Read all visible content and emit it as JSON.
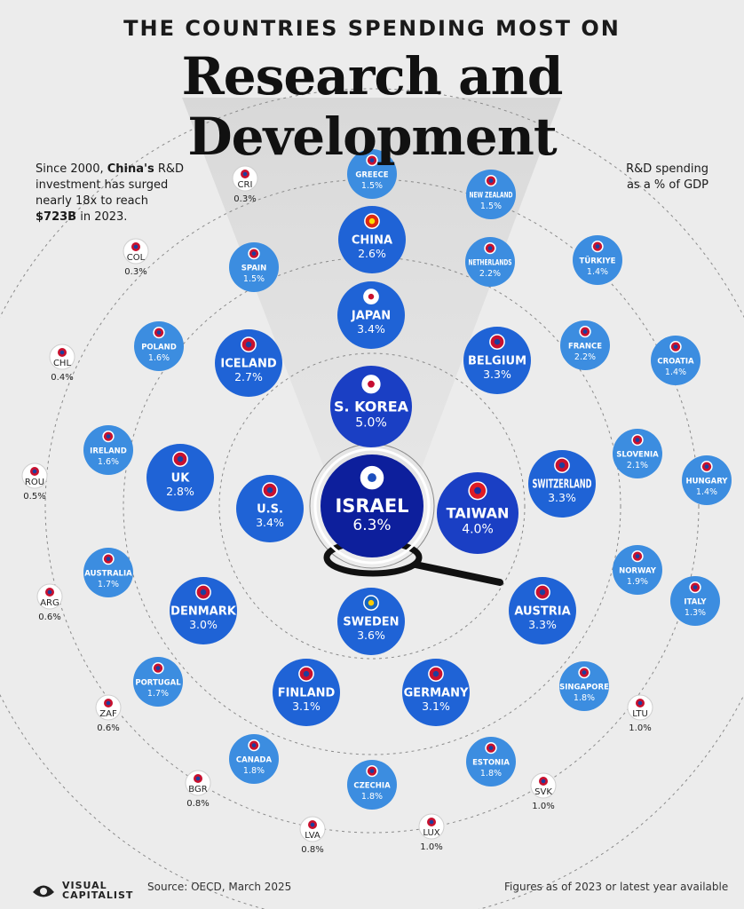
{
  "header": {
    "supertitle": "THE COUNTRIES SPENDING MOST ON",
    "title": "Research and Development"
  },
  "annotation": {
    "line1": "Since 2000, ",
    "bold1": "China's",
    "line1b": " R&D",
    "line2": "investment has surged",
    "line3": "nearly 18x to reach",
    "bold2": "$723B",
    "line4": " in 2023."
  },
  "unit_note": {
    "line1": "R&D spending",
    "line2": "as a % of GDP"
  },
  "footer": {
    "brand": "VISUAL CAPITALIST",
    "source": "Source: OECD, March 2025",
    "note": "Figures as of 2023 or latest year available"
  },
  "colors": {
    "background": "#ececec",
    "ring1": "#0d1f9c",
    "ring2": "#1a3fc4",
    "ring3": "#1f63d6",
    "ring4": "#3c8de0",
    "ring5": "#ffffff",
    "text_light": "#ffffff",
    "text_dark": "#222222"
  },
  "chart_data": {
    "type": "bubble",
    "measure": "R&D spending as a % of GDP",
    "countries": [
      {
        "name": "ISRAEL",
        "value": 6.3,
        "flag": "israel-flag"
      },
      {
        "name": "S. KOREA",
        "value": 5.0,
        "flag": "south-korea-flag"
      },
      {
        "name": "TAIWAN",
        "value": 4.0,
        "flag": "taiwan-flag"
      },
      {
        "name": "SWEDEN",
        "value": 3.6,
        "flag": "sweden-flag"
      },
      {
        "name": "U.S.",
        "value": 3.4,
        "flag": "usa-flag"
      },
      {
        "name": "JAPAN",
        "value": 3.4,
        "flag": "japan-flag"
      },
      {
        "name": "BELGIUM",
        "value": 3.3,
        "flag": "belgium-flag"
      },
      {
        "name": "SWITZERLAND",
        "value": 3.3,
        "flag": "switzerland-flag"
      },
      {
        "name": "AUSTRIA",
        "value": 3.3,
        "flag": "austria-flag"
      },
      {
        "name": "GERMANY",
        "value": 3.1,
        "flag": "germany-flag"
      },
      {
        "name": "FINLAND",
        "value": 3.1,
        "flag": "finland-flag"
      },
      {
        "name": "DENMARK",
        "value": 3.0,
        "flag": "denmark-flag"
      },
      {
        "name": "UK",
        "value": 2.8,
        "flag": "uk-flag"
      },
      {
        "name": "ICELAND",
        "value": 2.7,
        "flag": "iceland-flag"
      },
      {
        "name": "CHINA",
        "value": 2.6,
        "flag": "china-flag"
      },
      {
        "name": "NETHERLANDS",
        "value": 2.2,
        "flag": "netherlands-flag"
      },
      {
        "name": "FRANCE",
        "value": 2.2,
        "flag": "france-flag"
      },
      {
        "name": "SLOVENIA",
        "value": 2.1,
        "flag": "slovenia-flag"
      },
      {
        "name": "NORWAY",
        "value": 1.9,
        "flag": "norway-flag"
      },
      {
        "name": "SINGAPORE",
        "value": 1.8,
        "flag": "singapore-flag"
      },
      {
        "name": "ESTONIA",
        "value": 1.8,
        "flag": "estonia-flag"
      },
      {
        "name": "CZECHIA",
        "value": 1.8,
        "flag": "czechia-flag"
      },
      {
        "name": "CANADA",
        "value": 1.8,
        "flag": "canada-flag"
      },
      {
        "name": "PORTUGAL",
        "value": 1.7,
        "flag": "portugal-flag"
      },
      {
        "name": "AUSTRALIA",
        "value": 1.7,
        "flag": "australia-flag"
      },
      {
        "name": "IRELAND",
        "value": 1.6,
        "flag": "ireland-flag"
      },
      {
        "name": "POLAND",
        "value": 1.6,
        "flag": "poland-flag"
      },
      {
        "name": "SPAIN",
        "value": 1.5,
        "flag": "spain-flag"
      },
      {
        "name": "GREECE",
        "value": 1.5,
        "flag": "greece-flag"
      },
      {
        "name": "NEW ZEALAND",
        "value": 1.5,
        "flag": "new-zealand-flag"
      },
      {
        "name": "TÜRKIYE",
        "value": 1.4,
        "flag": "turkiye-flag"
      },
      {
        "name": "CROATIA",
        "value": 1.4,
        "flag": "croatia-flag"
      },
      {
        "name": "HUNGARY",
        "value": 1.4,
        "flag": "hungary-flag"
      },
      {
        "name": "ITALY",
        "value": 1.3,
        "flag": "italy-flag"
      },
      {
        "name": "LTU",
        "value": 1.0,
        "flag": "lithuania-flag"
      },
      {
        "name": "SVK",
        "value": 1.0,
        "flag": "slovakia-flag"
      },
      {
        "name": "LUX",
        "value": 1.0,
        "flag": "luxembourg-flag"
      },
      {
        "name": "LVA",
        "value": 0.8,
        "flag": "latvia-flag"
      },
      {
        "name": "BGR",
        "value": 0.8,
        "flag": "bulgaria-flag"
      },
      {
        "name": "ZAF",
        "value": 0.6,
        "flag": "south-africa-flag"
      },
      {
        "name": "ARG",
        "value": 0.6,
        "flag": "argentina-flag"
      },
      {
        "name": "ROU",
        "value": 0.5,
        "flag": "romania-flag"
      },
      {
        "name": "CHL",
        "value": 0.4,
        "flag": "chile-flag"
      },
      {
        "name": "COL",
        "value": 0.3,
        "flag": "colombia-flag"
      },
      {
        "name": "CRI",
        "value": 0.3,
        "flag": "costa-rica-flag"
      }
    ]
  }
}
